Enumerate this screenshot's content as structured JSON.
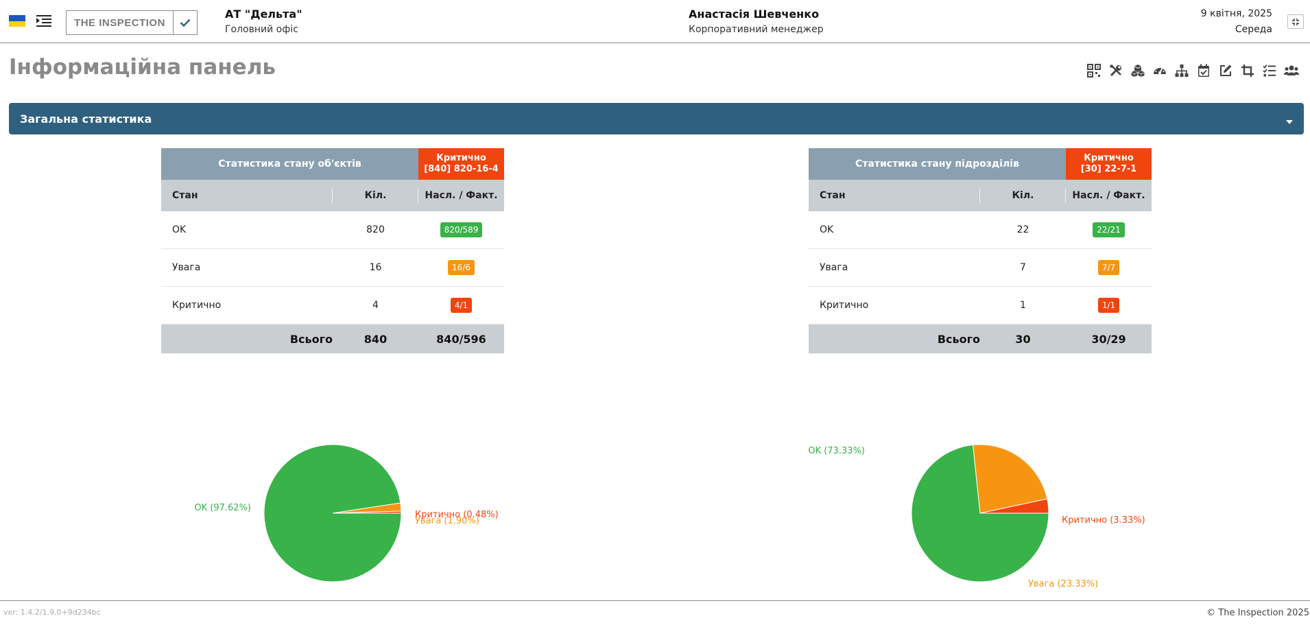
{
  "header": {
    "company_name": "АТ \"Дельта\"",
    "company_office": "Головний офіс",
    "user_name": "Анастасія Шевченко",
    "user_role": "Корпоративний менеджер",
    "date": "9 квітня, 2025",
    "weekday": "Середа",
    "logo_text": "THE INSPECTION"
  },
  "page": {
    "title": "Інформаційна панель",
    "toolbar_icons": [
      "qr-code-icon",
      "tools-icon",
      "cubes-icon",
      "gauge-icon",
      "org-chart-icon",
      "calendar-check-icon",
      "edit-icon",
      "crop-icon",
      "checklist-icon",
      "users-icon"
    ]
  },
  "section": {
    "title": "Загальна статистика"
  },
  "objects_card": {
    "title": "Статистика стану об'єктів",
    "crit_label": "Критично",
    "crit_detail": "[840] 820-16-4",
    "col_state": "Стан",
    "col_count": "Кіл.",
    "col_ratio": "Насл. / Факт.",
    "rows": [
      {
        "state": "OK",
        "count": "820",
        "ratio": "820/589"
      },
      {
        "state": "Увага",
        "count": "16",
        "ratio": "16/6"
      },
      {
        "state": "Критично",
        "count": "4",
        "ratio": "4/1"
      }
    ],
    "total_label": "Всього",
    "total_count": "840",
    "total_ratio": "840/596"
  },
  "units_card": {
    "title": "Статистика стану підрозділів",
    "crit_label": "Критично",
    "crit_detail": "[30] 22-7-1",
    "col_state": "Стан",
    "col_count": "Кіл.",
    "col_ratio": "Насл. / Факт.",
    "rows": [
      {
        "state": "OK",
        "count": "22",
        "ratio": "22/21"
      },
      {
        "state": "Увага",
        "count": "7",
        "ratio": "7/7"
      },
      {
        "state": "Критично",
        "count": "1",
        "ratio": "1/1"
      }
    ],
    "total_label": "Всього",
    "total_count": "30",
    "total_ratio": "30/29"
  },
  "colors": {
    "ok": "#38b249",
    "warn": "#f79513",
    "crit": "#f1450f",
    "section": "#2f6080"
  },
  "chart_data": [
    {
      "type": "pie",
      "slices": [
        {
          "label": "OK (97.62%)",
          "value": 97.62,
          "color": "#38b249"
        },
        {
          "label": "Увага (1.90%)",
          "value": 1.9,
          "color": "#f79513"
        },
        {
          "label": "Критично (0.48%)",
          "value": 0.48,
          "color": "#f1450f"
        }
      ]
    },
    {
      "type": "pie",
      "slices": [
        {
          "label": "OK (73.33%)",
          "value": 73.33,
          "color": "#38b249"
        },
        {
          "label": "Увага (23.33%)",
          "value": 23.33,
          "color": "#f79513"
        },
        {
          "label": "Критично (3.33%)",
          "value": 3.33,
          "color": "#f1450f"
        }
      ]
    }
  ],
  "footer": {
    "version": "ver: 1.4.2/1.9.0+9d234bc",
    "copyright": "© The Inspection 2025"
  }
}
